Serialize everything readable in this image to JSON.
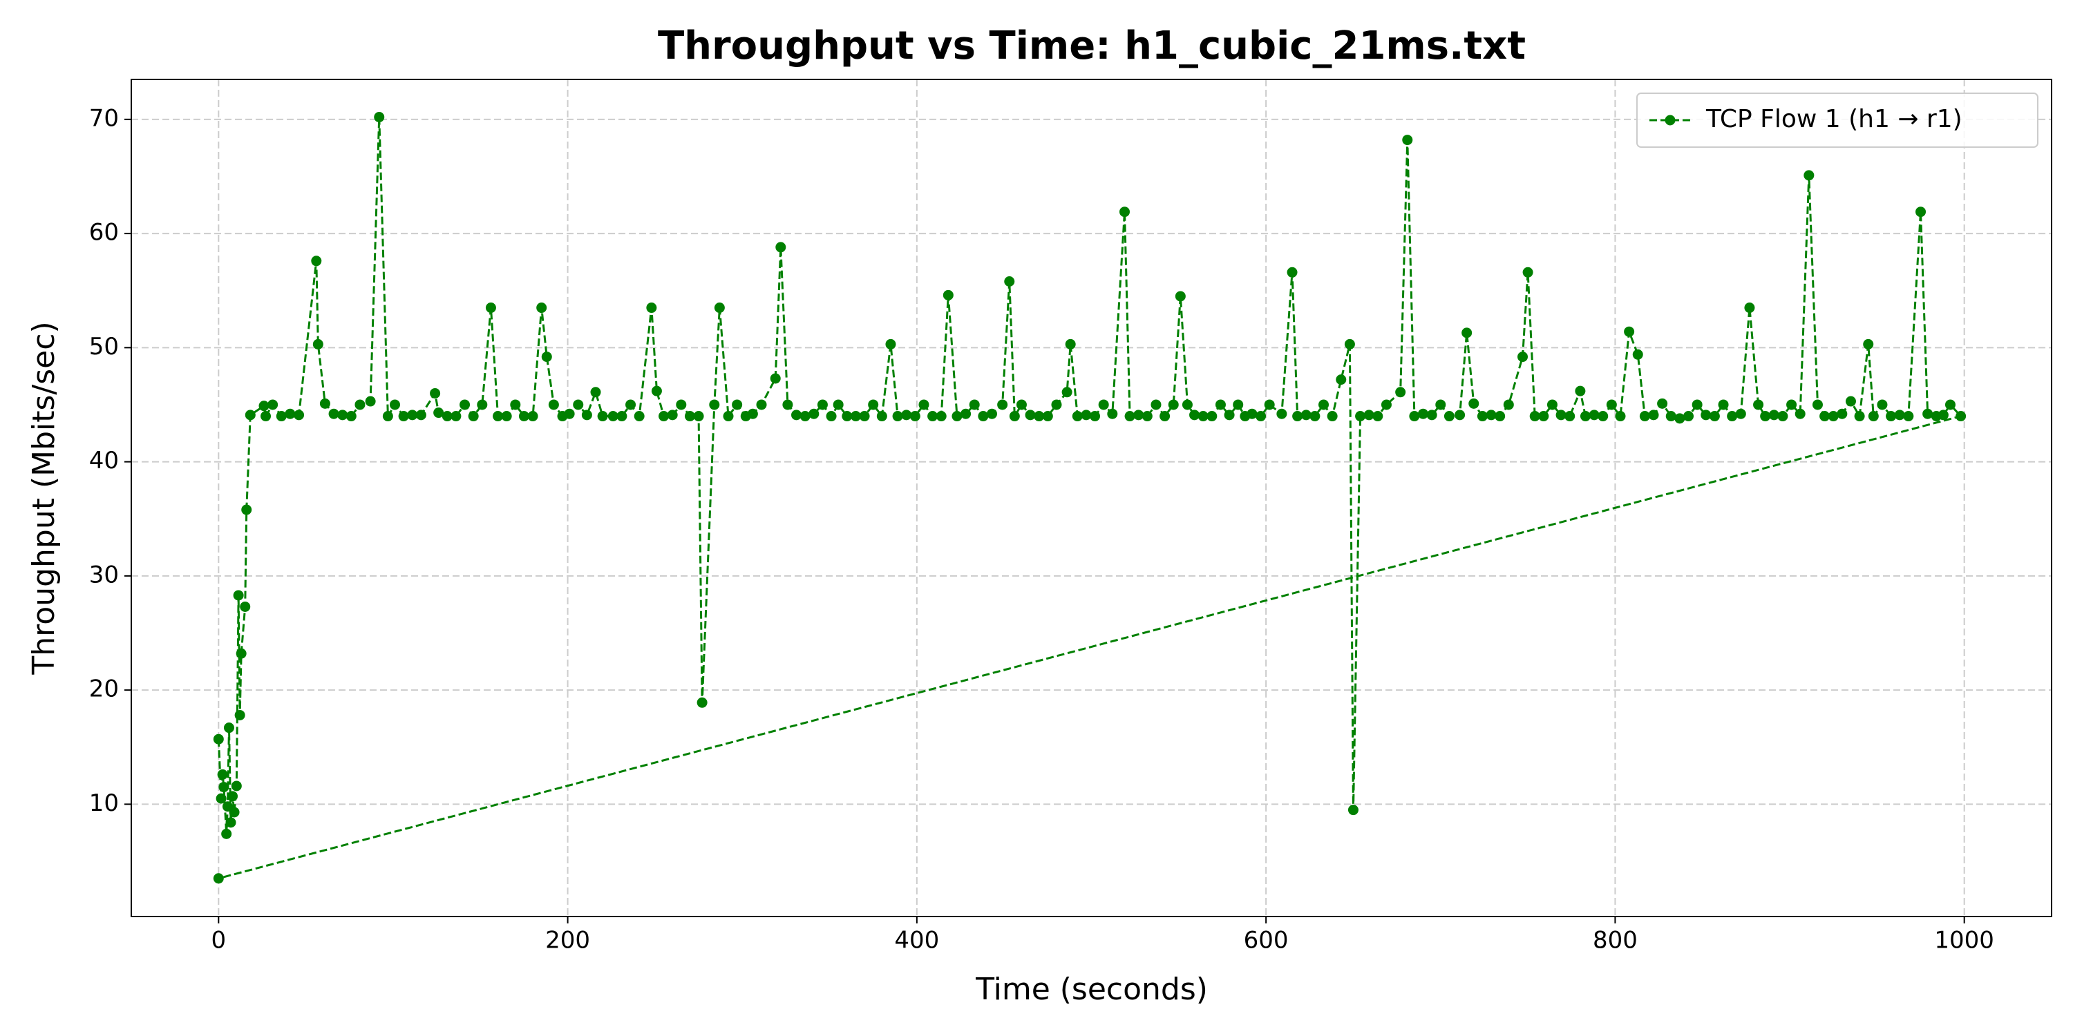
{
  "chart_data": {
    "type": "line",
    "title": "Throughput vs Time: h1_cubic_21ms.txt",
    "xlabel": "Time (seconds)",
    "ylabel": "Throughput (Mbits/sec)",
    "x": [
      0,
      1.5,
      2.3,
      3,
      4.5,
      5.2,
      6,
      7,
      8,
      9,
      10.3,
      11.4,
      12.2,
      13,
      15.2,
      16,
      18.2,
      26,
      27,
      31,
      36,
      41,
      46,
      56,
      57,
      61,
      66,
      71,
      76,
      81,
      87,
      92,
      97,
      101,
      106,
      111,
      116,
      124,
      126,
      131,
      136,
      141,
      146,
      151,
      156,
      160,
      165,
      170,
      175,
      180,
      185,
      188,
      192,
      197,
      201,
      206,
      211,
      216,
      220,
      226,
      231,
      236,
      241,
      248,
      251,
      255,
      260,
      265,
      270,
      275,
      277,
      284,
      287,
      292,
      297,
      302,
      306,
      311,
      319,
      322,
      326,
      331,
      336,
      341,
      346,
      351,
      355,
      360,
      365,
      370,
      375,
      380,
      385,
      389,
      394,
      399,
      404,
      409,
      414,
      418,
      423,
      428,
      433,
      438,
      443,
      449,
      453,
      456,
      460,
      465,
      470,
      475,
      480,
      486,
      488,
      492,
      497,
      502,
      507,
      512,
      519,
      522,
      527,
      532,
      537,
      542,
      547,
      551,
      555,
      559,
      564,
      569,
      574,
      579,
      584,
      588,
      592,
      597,
      602,
      609,
      615,
      618,
      623,
      628,
      633,
      638,
      643,
      648,
      650,
      654,
      659,
      664,
      669,
      677,
      681,
      685,
      690,
      695,
      700,
      705,
      711,
      715,
      719,
      724,
      729,
      734,
      739,
      747,
      750,
      754,
      759,
      764,
      769,
      774,
      780,
      783,
      788,
      793,
      798,
      803,
      808,
      813,
      817,
      822,
      827,
      832,
      837,
      842,
      847,
      852,
      857,
      862,
      867,
      872,
      877,
      882,
      886,
      891,
      896,
      901,
      906,
      911,
      916,
      920,
      925,
      930,
      935,
      940,
      945,
      948,
      953,
      958,
      963,
      968,
      975,
      979,
      984,
      988,
      992,
      998,
      0
    ],
    "series": [
      {
        "name": "TCP Flow 1 (h1 → r1)",
        "color": "#008000",
        "values": [
          15.7,
          10.5,
          12.6,
          11.5,
          7.4,
          9.8,
          16.7,
          8.4,
          10.7,
          9.3,
          11.6,
          28.3,
          17.8,
          23.2,
          27.3,
          35.8,
          44.1,
          44.9,
          44,
          45,
          44,
          44.2,
          44.1,
          57.6,
          50.3,
          45.1,
          44.2,
          44.1,
          44,
          45,
          45.3,
          70.2,
          44,
          45,
          44,
          44.1,
          44.1,
          46,
          44.3,
          44,
          44,
          45,
          44,
          45,
          53.5,
          44,
          44,
          45,
          44,
          44,
          53.5,
          49.2,
          45,
          44,
          44.2,
          45,
          44.1,
          46.1,
          44,
          44,
          44,
          45,
          44,
          53.5,
          46.2,
          44,
          44.1,
          45,
          44,
          44,
          18.9,
          45,
          53.5,
          44,
          45,
          44,
          44.2,
          45,
          47.3,
          58.8,
          45,
          44.1,
          44,
          44.2,
          45,
          44,
          45,
          44,
          44,
          44,
          45,
          44,
          50.3,
          44,
          44.1,
          44,
          45,
          44,
          44,
          54.6,
          44,
          44.2,
          45,
          44,
          44.2,
          45,
          55.8,
          44,
          45,
          44.1,
          44,
          44,
          45,
          46.1,
          50.3,
          44,
          44.1,
          44,
          45,
          44.2,
          61.9,
          44,
          44.1,
          44,
          45,
          44,
          45,
          54.5,
          45,
          44.1,
          44,
          44,
          45,
          44.1,
          45,
          44,
          44.2,
          44,
          45,
          44.2,
          56.6,
          44,
          44.1,
          44,
          45,
          44,
          47.2,
          50.3,
          9.5,
          44,
          44.1,
          44,
          45,
          46.1,
          68.2,
          44,
          44.2,
          44.1,
          45,
          44,
          44.1,
          51.3,
          45.1,
          44,
          44.1,
          44,
          45,
          49.2,
          56.6,
          44,
          44,
          45,
          44.1,
          44,
          46.2,
          44,
          44.1,
          44,
          45,
          44,
          51.4,
          49.4,
          44,
          44.1,
          45.1,
          44,
          43.8,
          44,
          45,
          44.1,
          44,
          45,
          44,
          44.2,
          53.5,
          45,
          44,
          44.1,
          44,
          45,
          44.2,
          65.1,
          45,
          44,
          44,
          44.2,
          45.3,
          44,
          50.3,
          44,
          45,
          44,
          44.1,
          44,
          61.9,
          44.2,
          44,
          44.1,
          45,
          44,
          3.5
        ]
      }
    ],
    "xlim": [
      -50,
      1050
    ],
    "xticks": [
      0,
      200,
      400,
      600,
      800,
      1000
    ],
    "ylim": [
      0.16,
      73.5
    ],
    "yticks": [
      10,
      20,
      30,
      40,
      50,
      60,
      70
    ],
    "grid": true,
    "legend": "upper right"
  }
}
